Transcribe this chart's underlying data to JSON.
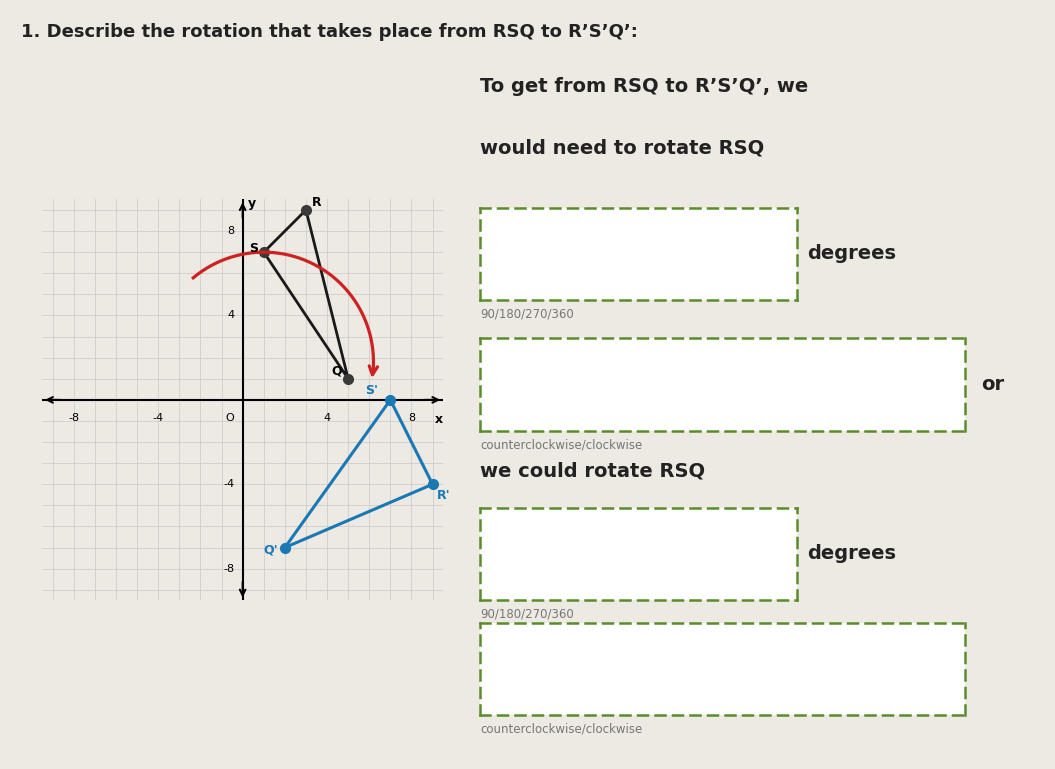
{
  "title": "1. Describe the rotation that takes place from RSQ to R’S’Q’:",
  "background_color": "#ede9e3",
  "grid_color": "#c8c8c8",
  "axis_color": "#000000",
  "R": [
    3,
    9
  ],
  "S": [
    1,
    7
  ],
  "Q": [
    5,
    1
  ],
  "Rp": [
    9,
    -4
  ],
  "Sp": [
    7,
    0
  ],
  "Qp": [
    2,
    -7
  ],
  "triangle_color": "#1a1a1a",
  "triangle_prime_color": "#1a78b4",
  "dot_color": "#3a3a3a",
  "dot_prime_color": "#1a78b4",
  "arrow_color": "#cc2222",
  "line1": "To get from RSQ to R’S’Q’, we",
  "line2": "would need to rotate RSQ",
  "box1_label": "90/180/270/360",
  "degrees_text": "degrees",
  "box2_label": "counterclockwise/clockwise",
  "or_text": "or",
  "line3": "we could rotate RSQ",
  "box3_label": "90/180/270/360",
  "box4_label": "counterclockwise/clockwise",
  "green_dash": "#5a8c2a",
  "text_color": "#222222",
  "label_color": "#777777"
}
